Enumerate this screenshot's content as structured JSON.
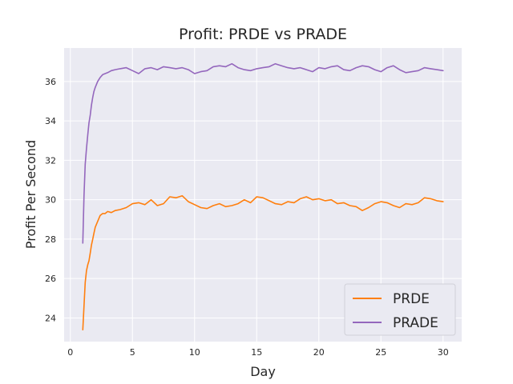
{
  "chart_data": {
    "type": "line",
    "title": "Profit: PRDE vs PRADE",
    "xlabel": "Day",
    "ylabel": "Profit Per Second",
    "xlim": [
      -0.5,
      31.5
    ],
    "ylim": [
      22.8,
      37.7
    ],
    "xticks": [
      0,
      5,
      10,
      15,
      20,
      25,
      30
    ],
    "yticks": [
      24,
      26,
      28,
      30,
      32,
      34,
      36
    ],
    "grid": true,
    "legend_position": "lower-right",
    "background": "#eaeaf2",
    "series": [
      {
        "name": "PRDE",
        "color": "#ff7f0e",
        "x": [
          1.0,
          1.1,
          1.2,
          1.3,
          1.4,
          1.5,
          1.6,
          1.7,
          1.8,
          1.9,
          2.0,
          2.2,
          2.4,
          2.6,
          2.8,
          3.0,
          3.3,
          3.6,
          4.0,
          4.5,
          5.0,
          5.5,
          6.0,
          6.5,
          7.0,
          7.5,
          8.0,
          8.5,
          9.0,
          9.5,
          10.0,
          10.5,
          11.0,
          11.5,
          12.0,
          12.5,
          13.0,
          13.5,
          14.0,
          14.5,
          15.0,
          15.5,
          16.0,
          16.5,
          17.0,
          17.5,
          18.0,
          18.5,
          19.0,
          19.5,
          20.0,
          20.5,
          21.0,
          21.5,
          22.0,
          22.5,
          23.0,
          23.5,
          24.0,
          24.5,
          25.0,
          25.5,
          26.0,
          26.5,
          27.0,
          27.5,
          28.0,
          28.5,
          29.0,
          29.5,
          30.0
        ],
        "y": [
          23.4,
          24.6,
          25.8,
          26.4,
          26.7,
          26.9,
          27.3,
          27.7,
          28.0,
          28.3,
          28.6,
          28.9,
          29.2,
          29.3,
          29.3,
          29.4,
          29.35,
          29.45,
          29.5,
          29.6,
          29.8,
          29.85,
          29.75,
          30.0,
          29.7,
          29.8,
          30.15,
          30.1,
          30.2,
          29.9,
          29.75,
          29.6,
          29.55,
          29.7,
          29.8,
          29.65,
          29.7,
          29.8,
          30.0,
          29.85,
          30.15,
          30.1,
          29.95,
          29.8,
          29.75,
          29.9,
          29.85,
          30.05,
          30.15,
          30.0,
          30.05,
          29.95,
          30.0,
          29.8,
          29.85,
          29.7,
          29.65,
          29.45,
          29.6,
          29.8,
          29.9,
          29.85,
          29.7,
          29.6,
          29.8,
          29.75,
          29.85,
          30.1,
          30.05,
          29.95,
          29.9
        ]
      },
      {
        "name": "PRADE",
        "color": "#9467bd",
        "x": [
          1.0,
          1.1,
          1.2,
          1.3,
          1.4,
          1.5,
          1.6,
          1.7,
          1.8,
          1.9,
          2.0,
          2.2,
          2.4,
          2.6,
          2.8,
          3.0,
          3.3,
          3.6,
          4.0,
          4.5,
          5.0,
          5.5,
          6.0,
          6.5,
          7.0,
          7.5,
          8.0,
          8.5,
          9.0,
          9.5,
          10.0,
          10.5,
          11.0,
          11.5,
          12.0,
          12.5,
          13.0,
          13.5,
          14.0,
          14.5,
          15.0,
          15.5,
          16.0,
          16.5,
          17.0,
          17.5,
          18.0,
          18.5,
          19.0,
          19.5,
          20.0,
          20.5,
          21.0,
          21.5,
          22.0,
          22.5,
          23.0,
          23.5,
          24.0,
          24.5,
          25.0,
          25.5,
          26.0,
          26.5,
          27.0,
          27.5,
          28.0,
          28.5,
          29.0,
          29.5,
          30.0
        ],
        "y": [
          27.8,
          30.2,
          31.8,
          32.6,
          33.3,
          33.9,
          34.3,
          34.8,
          35.2,
          35.5,
          35.7,
          36.0,
          36.2,
          36.35,
          36.4,
          36.45,
          36.55,
          36.6,
          36.65,
          36.7,
          36.55,
          36.4,
          36.65,
          36.7,
          36.6,
          36.75,
          36.7,
          36.65,
          36.7,
          36.6,
          36.4,
          36.5,
          36.55,
          36.75,
          36.8,
          36.75,
          36.9,
          36.7,
          36.6,
          36.55,
          36.65,
          36.7,
          36.75,
          36.9,
          36.8,
          36.7,
          36.65,
          36.7,
          36.6,
          36.5,
          36.7,
          36.65,
          36.75,
          36.8,
          36.6,
          36.55,
          36.7,
          36.8,
          36.75,
          36.6,
          36.5,
          36.7,
          36.8,
          36.6,
          36.45,
          36.5,
          36.55,
          36.7,
          36.65,
          36.6,
          36.55
        ]
      }
    ]
  }
}
